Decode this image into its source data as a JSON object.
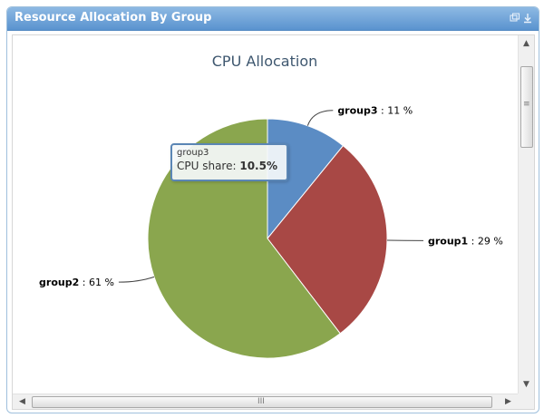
{
  "panel": {
    "title": "Resource Allocation By Group"
  },
  "header_icons": {
    "restore": "restore-icon",
    "download": "download-icon"
  },
  "scrollbars": {
    "vertical_grip": "≡",
    "horizontal_grip": "III"
  },
  "chart_data": {
    "type": "pie",
    "title": "CPU Allocation",
    "start_angle_deg": 0,
    "slices": [
      {
        "name": "group3",
        "value": 11,
        "label": "11 %",
        "color": "#5b8cc4"
      },
      {
        "name": "group1",
        "value": 29,
        "label": "29 %",
        "color": "#a84845"
      },
      {
        "name": "group2",
        "value": 61,
        "label": "61 %",
        "color": "#8aa64e"
      }
    ]
  },
  "tooltip": {
    "series_name": "group3",
    "label": "CPU share:",
    "value": "10.5%"
  }
}
